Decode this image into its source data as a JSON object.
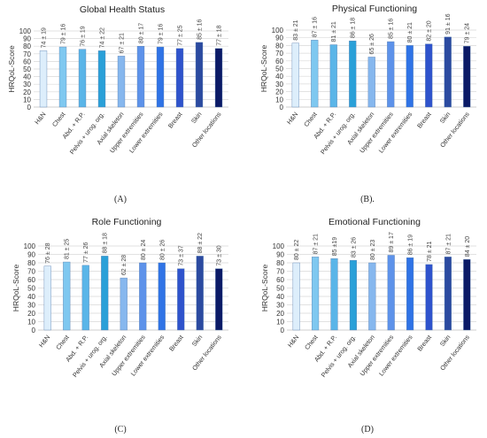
{
  "y_axis_label": "HRQoL-Score",
  "categories": [
    "H&N",
    "Chest",
    "Abd. + R.P.",
    "Pelvis + urog. org.",
    "Axial skeleton",
    "Upper extremities",
    "Lower extremities",
    "Breast",
    "Skin",
    "Other locations"
  ],
  "bar_colors": [
    "#ddeefb",
    "#7fc8f0",
    "#5ab5e8",
    "#2aa0d8",
    "#86b7ee",
    "#5d92ea",
    "#2f73e6",
    "#2f53cc",
    "#2b4aa0",
    "#0b1a66"
  ],
  "chart_data": [
    {
      "type": "bar",
      "title": "Global Health Status",
      "panel_label": "(A)",
      "ylabel": "HRQoL-Score",
      "ylim": [
        0,
        100
      ],
      "yticks": [
        0,
        10,
        20,
        30,
        40,
        50,
        60,
        70,
        80,
        90,
        100
      ],
      "grid": true,
      "categories": [
        "H&N",
        "Chest",
        "Abd. + R.P.",
        "Pelvis + urog. org.",
        "Axial skeleton",
        "Upper extremities",
        "Lower extremities",
        "Breast",
        "Skin",
        "Other locations"
      ],
      "values": [
        74,
        79,
        76,
        74,
        67,
        80,
        79,
        77,
        85,
        77
      ],
      "labels": [
        "74 ± 19",
        "79 ± 16",
        "76 ± 19",
        "74 ± 22",
        "67 ± 21",
        "80 ± 17",
        "79 ± 16",
        "77 ± 25",
        "85 ± 16",
        "77 ± 18"
      ]
    },
    {
      "type": "bar",
      "title": "Physical Functioning",
      "panel_label": "(B).",
      "ylabel": "HRQoL-Score",
      "ylim": [
        0,
        100
      ],
      "yticks": [
        0,
        10,
        20,
        30,
        40,
        50,
        60,
        70,
        80,
        90,
        100
      ],
      "grid": true,
      "categories": [
        "H&N",
        "Chest",
        "Abd. + R.P.",
        "Pelvis + urog. org.",
        "Axial skeleton",
        "Upper extremities",
        "Lower extremities",
        "Breast",
        "Skin",
        "Other locations"
      ],
      "values": [
        83,
        87,
        81,
        86,
        65,
        85,
        80,
        82,
        91,
        79
      ],
      "labels": [
        "83 ± 21",
        "87 ± 16",
        "81 ± 21",
        "86 ± 18",
        "65 ± 26",
        "85 ± 16",
        "80 ± 21",
        "82 ± 20",
        "91 ± 16",
        "79 ± 24"
      ]
    },
    {
      "type": "bar",
      "title": "Role Functioning",
      "panel_label": "(C)",
      "ylabel": "HRQoL-Score",
      "ylim": [
        0,
        100
      ],
      "yticks": [
        0,
        10,
        20,
        30,
        40,
        50,
        60,
        70,
        80,
        90,
        100
      ],
      "grid": true,
      "categories": [
        "H&N",
        "Chest",
        "Abd. + R.P.",
        "Pelvis + urog. org.",
        "Axial skeleton",
        "Upper extremities",
        "Lower extremities",
        "Breast",
        "Skin",
        "Other locations"
      ],
      "values": [
        76,
        81,
        77,
        88,
        62,
        80,
        80,
        73,
        88,
        73
      ],
      "labels": [
        "76 ± 28",
        "81 ± 25",
        "77 ± 26",
        "88 ± 18",
        "62 ± 28",
        "80 ± 24",
        "80 ± 26",
        "73 ± 37",
        "88 ± 22",
        "73 ± 30"
      ]
    },
    {
      "type": "bar",
      "title": "Emotional Functioning",
      "panel_label": "(D)",
      "ylabel": "HRQoL-Score",
      "ylim": [
        0,
        100
      ],
      "yticks": [
        0,
        10,
        20,
        30,
        40,
        50,
        60,
        70,
        80,
        90,
        100
      ],
      "grid": true,
      "categories": [
        "H&N",
        "Chest",
        "Abd. + R.P.",
        "Pelvis + urog. org.",
        "Axial skeleton",
        "Upper extremities",
        "Lower extremities",
        "Breast",
        "Skin",
        "Other locations"
      ],
      "values": [
        80,
        87,
        85,
        83,
        80,
        89,
        86,
        78,
        87,
        84
      ],
      "labels": [
        "80 ± 22",
        "87 ± 21",
        "85 ±19",
        "83 ± 26",
        "80 ± 23",
        "89 ± 17",
        "86 ± 19",
        "78 ± 21",
        "87 ± 21",
        "84 ± 20"
      ]
    }
  ]
}
